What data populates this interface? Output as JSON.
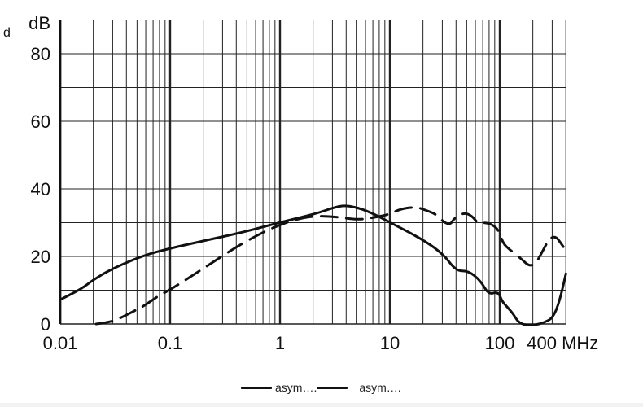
{
  "chart_data": {
    "type": "line",
    "title": "",
    "xlabel": "MHz",
    "ylabel": "dB",
    "x_scale": "log",
    "xlim": [
      0.01,
      400
    ],
    "ylim": [
      0,
      90
    ],
    "x_ticks": [
      {
        "value": 0.01,
        "label": "0.01"
      },
      {
        "value": 0.1,
        "label": "0.1"
      },
      {
        "value": 1,
        "label": "1"
      },
      {
        "value": 10,
        "label": "10"
      },
      {
        "value": 100,
        "label": "100"
      },
      {
        "value": 400,
        "label": "400 MHz"
      }
    ],
    "y_ticks": [
      {
        "value": 0,
        "label": "0"
      },
      {
        "value": 20,
        "label": "20"
      },
      {
        "value": 40,
        "label": "40"
      },
      {
        "value": 60,
        "label": "60"
      },
      {
        "value": 80,
        "label": "80"
      }
    ],
    "y_unit_label": "dB",
    "corner_label": "d",
    "grid": true,
    "legend_position": "bottom",
    "series": [
      {
        "name": "asym….",
        "style": "solid",
        "x": [
          0.01,
          0.0156,
          0.0198,
          0.0298,
          0.0561,
          0.1,
          0.2,
          0.47,
          1,
          2.05,
          3.1,
          4.0,
          6.1,
          10,
          20.5,
          31,
          40,
          52,
          67,
          79,
          97,
          105,
          115,
          132,
          151,
          200,
          258,
          306,
          350,
          400
        ],
        "values": [
          7.2,
          10.4,
          13,
          16.4,
          20.2,
          22.4,
          24.6,
          27.2,
          30.1,
          32.5,
          34.5,
          35.2,
          33.7,
          30.1,
          24.8,
          20.5,
          15.7,
          15.7,
          12.8,
          8.7,
          9.6,
          6.7,
          5.3,
          3.1,
          0,
          -0.7,
          0.5,
          1.9,
          6.7,
          14.9
        ]
      },
      {
        "name": "asym….",
        "style": "dashed",
        "x": [
          0.0212,
          0.0273,
          0.0336,
          0.0488,
          0.0588,
          0.0814,
          0.1,
          0.2,
          0.47,
          1,
          1.88,
          3.1,
          5.2,
          7.4,
          10,
          12.3,
          17.3,
          22,
          26.3,
          31,
          35.5,
          38.5,
          47.4,
          56,
          64,
          72.5,
          86,
          98,
          107,
          121,
          157,
          185,
          212,
          238,
          282,
          324,
          366,
          400
        ],
        "values": [
          0,
          0.5,
          1.4,
          4.1,
          5.5,
          8.7,
          10.1,
          16.4,
          24.3,
          29.6,
          32.0,
          31.8,
          30.8,
          31.6,
          32.5,
          34.0,
          34.7,
          33.5,
          32.5,
          30.1,
          29.4,
          31.3,
          33.0,
          32.0,
          29.6,
          30.1,
          29.4,
          27.7,
          23.9,
          22.2,
          19.3,
          17.1,
          17.8,
          20.7,
          25.3,
          26.0,
          23.6,
          21.7
        ]
      }
    ]
  },
  "legend": {
    "items": [
      {
        "label": "asym….",
        "style": "solid"
      },
      {
        "label": "asym….",
        "style": "dashed"
      }
    ]
  }
}
